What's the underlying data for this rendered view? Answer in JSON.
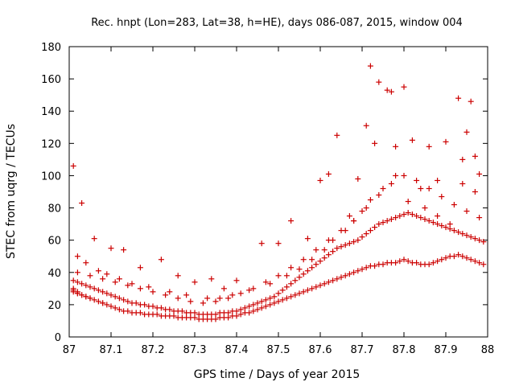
{
  "chart_data": {
    "type": "scatter",
    "title": "Rec. hnpt (Lon=283, Lat=38, h=HE), days 086-087, 2015, window 004",
    "xlabel": "GPS time / Days of year 2015",
    "ylabel": "STEC from uqrg / TECUs",
    "xlim": [
      87,
      88
    ],
    "ylim": [
      0,
      180
    ],
    "xticks": [
      87,
      87.1,
      87.2,
      87.3,
      87.4,
      87.5,
      87.6,
      87.7,
      87.8,
      87.9,
      88
    ],
    "xtick_labels": [
      "87",
      "87.1",
      "87.2",
      "87.3",
      "87.4",
      "87.5",
      "87.6",
      "87.7",
      "87.8",
      "87.9",
      "88"
    ],
    "yticks": [
      0,
      20,
      40,
      60,
      80,
      100,
      120,
      140,
      160,
      180
    ],
    "ytick_labels": [
      "0",
      "20",
      "40",
      "60",
      "80",
      "100",
      "120",
      "140",
      "160",
      "180"
    ],
    "grid": false,
    "marker": "+",
    "color": "#cc0000",
    "series": [
      {
        "x": [
          87.01,
          87.01,
          87.01,
          87.02,
          87.02,
          87.02,
          87.03,
          87.03,
          87.04,
          87.04,
          87.05,
          87.05,
          87.06,
          87.07,
          87.08,
          87.08,
          87.09,
          87.1,
          87.11,
          87.12,
          87.13,
          87.14,
          87.15,
          87.16,
          87.17,
          87.18,
          87.19,
          87.2,
          87.21,
          87.22,
          87.23,
          87.24,
          87.25,
          87.26,
          87.27,
          87.28,
          87.29,
          87.3,
          87.31,
          87.32,
          87.33,
          87.34,
          87.35,
          87.36,
          87.37,
          87.38,
          87.39,
          87.4,
          87.41,
          87.42,
          87.43,
          87.44,
          87.45,
          87.46,
          87.47,
          87.48,
          87.49,
          87.5,
          87.51,
          87.52,
          87.53,
          87.54,
          87.55,
          87.56,
          87.57,
          87.58,
          87.59,
          87.6,
          87.61,
          87.62,
          87.63,
          87.64,
          87.65,
          87.66,
          87.67,
          87.68,
          87.69,
          87.7,
          87.71,
          87.72,
          87.73,
          87.74,
          87.75,
          87.76,
          87.77,
          87.78,
          87.79,
          87.8,
          87.81,
          87.82,
          87.83,
          87.84,
          87.85,
          87.86,
          87.87,
          87.88,
          87.89,
          87.9,
          87.91,
          87.92,
          87.93,
          87.94,
          87.95,
          87.96,
          87.97,
          87.98,
          87.99
        ],
        "y": [
          30,
          29,
          28,
          28,
          27,
          27,
          26,
          26,
          25,
          25,
          24,
          24,
          23,
          22,
          21,
          21,
          20,
          19,
          18,
          17,
          16,
          16,
          15,
          15,
          15,
          14,
          14,
          14,
          14,
          13,
          13,
          13,
          13,
          12,
          12,
          12,
          12,
          12,
          11,
          11,
          11,
          11,
          11,
          12,
          12,
          12,
          13,
          13,
          14,
          15,
          15,
          16,
          17,
          18,
          19,
          20,
          21,
          22,
          23,
          24,
          25,
          26,
          27,
          28,
          29,
          30,
          31,
          32,
          33,
          34,
          35,
          36,
          37,
          38,
          39,
          40,
          41,
          42,
          43,
          44,
          44,
          45,
          45,
          46,
          46,
          46,
          47,
          48,
          47,
          46,
          46,
          45,
          45,
          45,
          46,
          47,
          48,
          49,
          50,
          50,
          51,
          50,
          49,
          48,
          47,
          46,
          45
        ]
      },
      {
        "x": [
          87.01,
          87.02,
          87.03,
          87.04,
          87.05,
          87.06,
          87.07,
          87.08,
          87.09,
          87.1,
          87.11,
          87.12,
          87.13,
          87.14,
          87.15,
          87.16,
          87.17,
          87.18,
          87.19,
          87.2,
          87.21,
          87.22,
          87.23,
          87.24,
          87.25,
          87.26,
          87.27,
          87.28,
          87.29,
          87.3,
          87.31,
          87.32,
          87.33,
          87.34,
          87.35,
          87.36,
          87.37,
          87.38,
          87.39,
          87.4,
          87.41,
          87.42,
          87.43,
          87.44,
          87.45,
          87.46,
          87.47,
          87.48,
          87.49,
          87.5,
          87.51,
          87.52,
          87.53,
          87.54,
          87.55,
          87.56,
          87.57,
          87.58,
          87.59,
          87.6,
          87.61,
          87.62,
          87.63,
          87.64,
          87.65,
          87.66,
          87.67,
          87.68,
          87.69,
          87.7,
          87.71,
          87.72,
          87.73,
          87.74,
          87.75,
          87.76,
          87.77,
          87.78,
          87.79,
          87.8,
          87.81,
          87.82,
          87.83,
          87.84,
          87.85,
          87.86,
          87.87,
          87.88,
          87.89,
          87.9,
          87.91,
          87.92,
          87.93,
          87.94,
          87.95,
          87.96,
          87.97,
          87.98,
          87.99
        ],
        "y": [
          35,
          34,
          33,
          32,
          31,
          30,
          29,
          28,
          27,
          26,
          25,
          24,
          23,
          22,
          21,
          21,
          20,
          20,
          19,
          19,
          18,
          18,
          17,
          17,
          16,
          16,
          16,
          15,
          15,
          15,
          14,
          14,
          14,
          14,
          14,
          15,
          15,
          15,
          16,
          16,
          17,
          18,
          19,
          20,
          21,
          22,
          23,
          24,
          25,
          27,
          29,
          31,
          33,
          35,
          37,
          39,
          41,
          43,
          45,
          47,
          49,
          51,
          53,
          55,
          56,
          57,
          58,
          59,
          60,
          62,
          64,
          66,
          68,
          70,
          71,
          72,
          73,
          74,
          75,
          76,
          77,
          76,
          75,
          74,
          73,
          72,
          71,
          70,
          69,
          68,
          67,
          66,
          65,
          64,
          63,
          62,
          61,
          60,
          59
        ]
      },
      {
        "x": [
          87.02,
          87.05,
          87.08,
          87.11,
          87.14,
          87.17,
          87.2,
          87.23,
          87.26,
          87.29,
          87.32,
          87.35,
          87.38,
          87.41,
          87.44,
          87.47,
          87.5,
          87.53,
          87.56,
          87.59,
          87.62,
          87.65,
          87.68,
          87.71,
          87.74,
          87.77,
          87.8,
          87.83,
          87.86,
          87.89,
          87.92,
          87.95,
          87.98
        ],
        "y": [
          40,
          38,
          36,
          34,
          32,
          30,
          28,
          26,
          24,
          22,
          21,
          22,
          24,
          27,
          30,
          34,
          38,
          43,
          48,
          54,
          60,
          66,
          72,
          80,
          88,
          95,
          100,
          97,
          92,
          87,
          82,
          78,
          74
        ]
      },
      {
        "x": [
          87.01,
          87.03,
          87.06,
          87.1,
          87.13,
          87.17,
          87.22,
          87.26,
          87.3,
          87.34,
          87.37,
          87.4,
          87.46,
          87.5,
          87.53,
          87.57,
          87.6,
          87.62,
          87.64,
          87.67,
          87.69,
          87.71,
          87.72,
          87.73,
          87.74,
          87.76,
          87.77,
          87.78,
          87.8,
          87.82,
          87.84,
          87.86,
          87.88,
          87.9,
          87.93,
          87.94,
          87.95,
          87.96,
          87.97,
          87.98
        ],
        "y": [
          106,
          83,
          61,
          55,
          54,
          43,
          48,
          38,
          34,
          36,
          30,
          35,
          58,
          58,
          72,
          61,
          97,
          101,
          125,
          75,
          98,
          131,
          168,
          120,
          158,
          153,
          152,
          118,
          155,
          122,
          92,
          118,
          97,
          121,
          148,
          110,
          127,
          146,
          112,
          101
        ]
      },
      {
        "x": [
          87.02,
          87.04,
          87.07,
          87.09,
          87.12,
          87.15,
          87.19,
          87.24,
          87.28,
          87.33,
          87.36,
          87.39,
          87.43,
          87.48,
          87.52,
          87.55,
          87.58,
          87.61,
          87.63,
          87.66,
          87.68,
          87.7,
          87.72,
          87.75,
          87.78,
          87.81,
          87.85,
          87.88,
          87.91,
          87.94,
          87.97
        ],
        "y": [
          50,
          46,
          41,
          39,
          36,
          33,
          31,
          28,
          26,
          24,
          24,
          26,
          29,
          33,
          38,
          42,
          48,
          54,
          60,
          66,
          72,
          78,
          85,
          92,
          100,
          84,
          80,
          75,
          70,
          95,
          90
        ]
      }
    ]
  }
}
